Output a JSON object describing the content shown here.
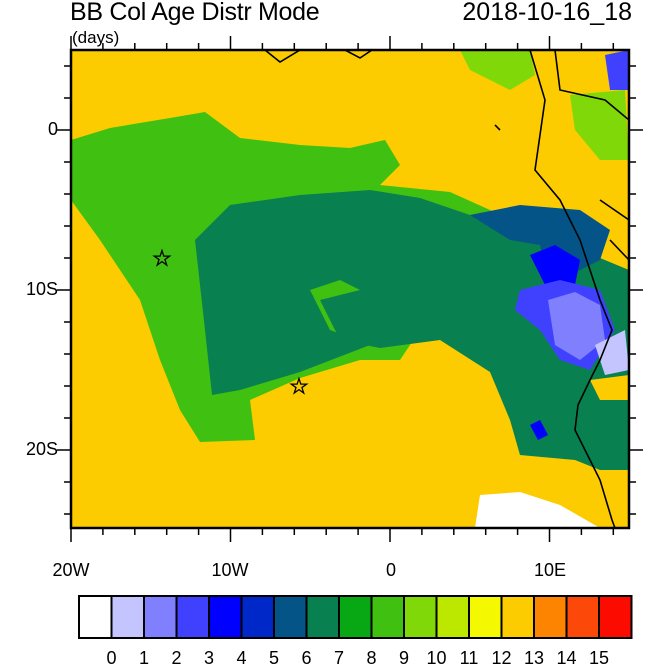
{
  "title": "BB Col Age Distr Mode",
  "units": "(days)",
  "datetime": "2018-10-16_18",
  "axes": {
    "lon_labels": [
      "20W",
      "10W",
      "0",
      "10E"
    ],
    "lat_labels": [
      "0",
      "10S",
      "20S"
    ]
  },
  "colorbar": {
    "labels": [
      "0",
      "1",
      "2",
      "3",
      "4",
      "5",
      "6",
      "7",
      "8",
      "9",
      "10",
      "11",
      "12",
      "13",
      "14",
      "15"
    ],
    "colors": [
      "#ffffff",
      "#c4c4ff",
      "#8080ff",
      "#4040ff",
      "#0000ff",
      "#0028c8",
      "#045488",
      "#088050",
      "#08a814",
      "#40c010",
      "#80d808",
      "#bce800",
      "#f4f800",
      "#fccc00",
      "#fc8400",
      "#fc4808",
      "#fc0c00"
    ]
  },
  "markers": [
    {
      "name": "star",
      "lon": -14.3,
      "lat": -8
    },
    {
      "name": "star",
      "lon": -5.8,
      "lat": -16
    }
  ]
}
